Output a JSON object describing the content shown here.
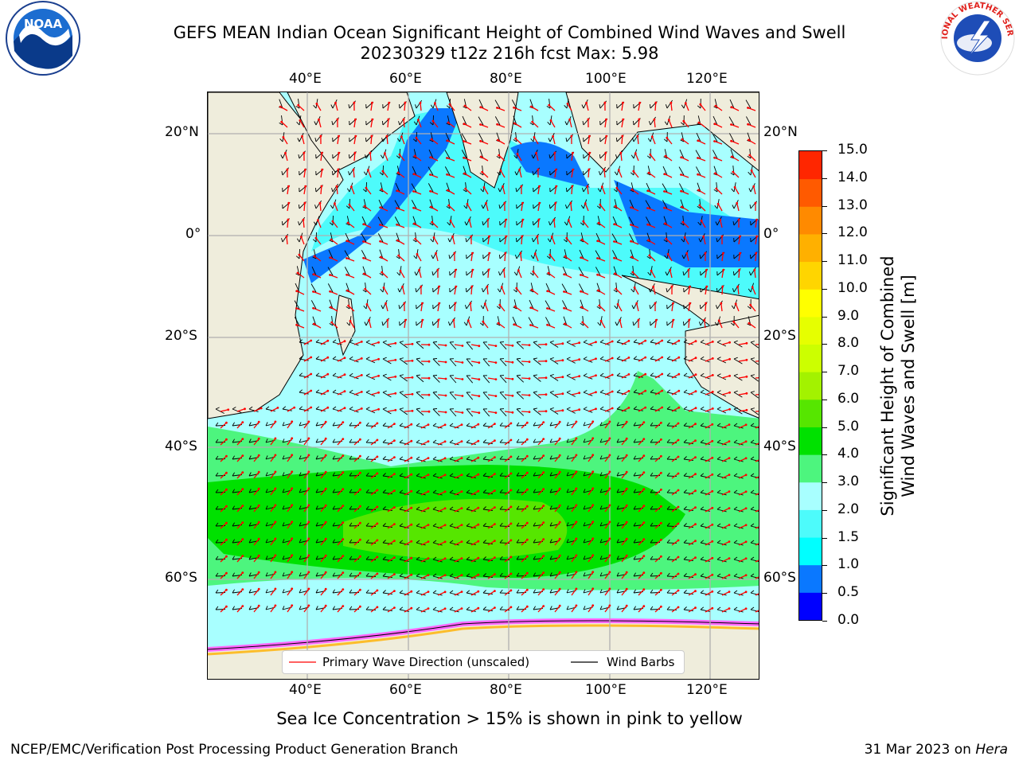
{
  "header": {
    "title_line1": "GEFS MEAN Indian Ocean Significant Height of Combined Wind Waves and Swell",
    "title_line2": "20230329 t12z 216h fcst   Max: 5.98"
  },
  "logos": {
    "noaa_text": "NOAA",
    "nws_text": "NATIONAL WEATHER SERVICE"
  },
  "map": {
    "lon_labels": [
      "40°E",
      "60°E",
      "80°E",
      "100°E",
      "120°E"
    ],
    "lat_labels": [
      "20°N",
      "0°",
      "20°S",
      "40°S",
      "60°S"
    ],
    "legend": {
      "wave": "Primary Wave Direction (unscaled)",
      "wind": "Wind Barbs"
    },
    "colors": {
      "land": "#efeddc",
      "gridline": "#b0b0b0",
      "wave_arrow": "#ff0000",
      "wind_barb": "#000000"
    }
  },
  "colorbar": {
    "label_line1": "Significant Height of Combined",
    "label_line2": "Wind Waves and Swell [m]",
    "ticks": [
      "0.0",
      "0.5",
      "1.0",
      "1.5",
      "2.0",
      "3.0",
      "4.0",
      "5.0",
      "6.0",
      "7.0",
      "8.0",
      "9.0",
      "10.0",
      "11.0",
      "12.0",
      "13.0",
      "14.0",
      "15.0"
    ],
    "colors": [
      "#0000ff",
      "#0a78ff",
      "#00ffff",
      "#4dfbfb",
      "#a8ffff",
      "#4df57e",
      "#00e100",
      "#56e600",
      "#a3f200",
      "#ccff00",
      "#e6ff00",
      "#ffff00",
      "#ffd500",
      "#ffb000",
      "#ff8a00",
      "#ff5a00",
      "#ff2600"
    ]
  },
  "note": "Sea Ice Concentration > 15% is shown in pink to yellow",
  "footer": {
    "left": "NCEP/EMC/Verification Post Processing Product Generation Branch",
    "date": "31 Mar 2023 on ",
    "host": "Hera"
  }
}
